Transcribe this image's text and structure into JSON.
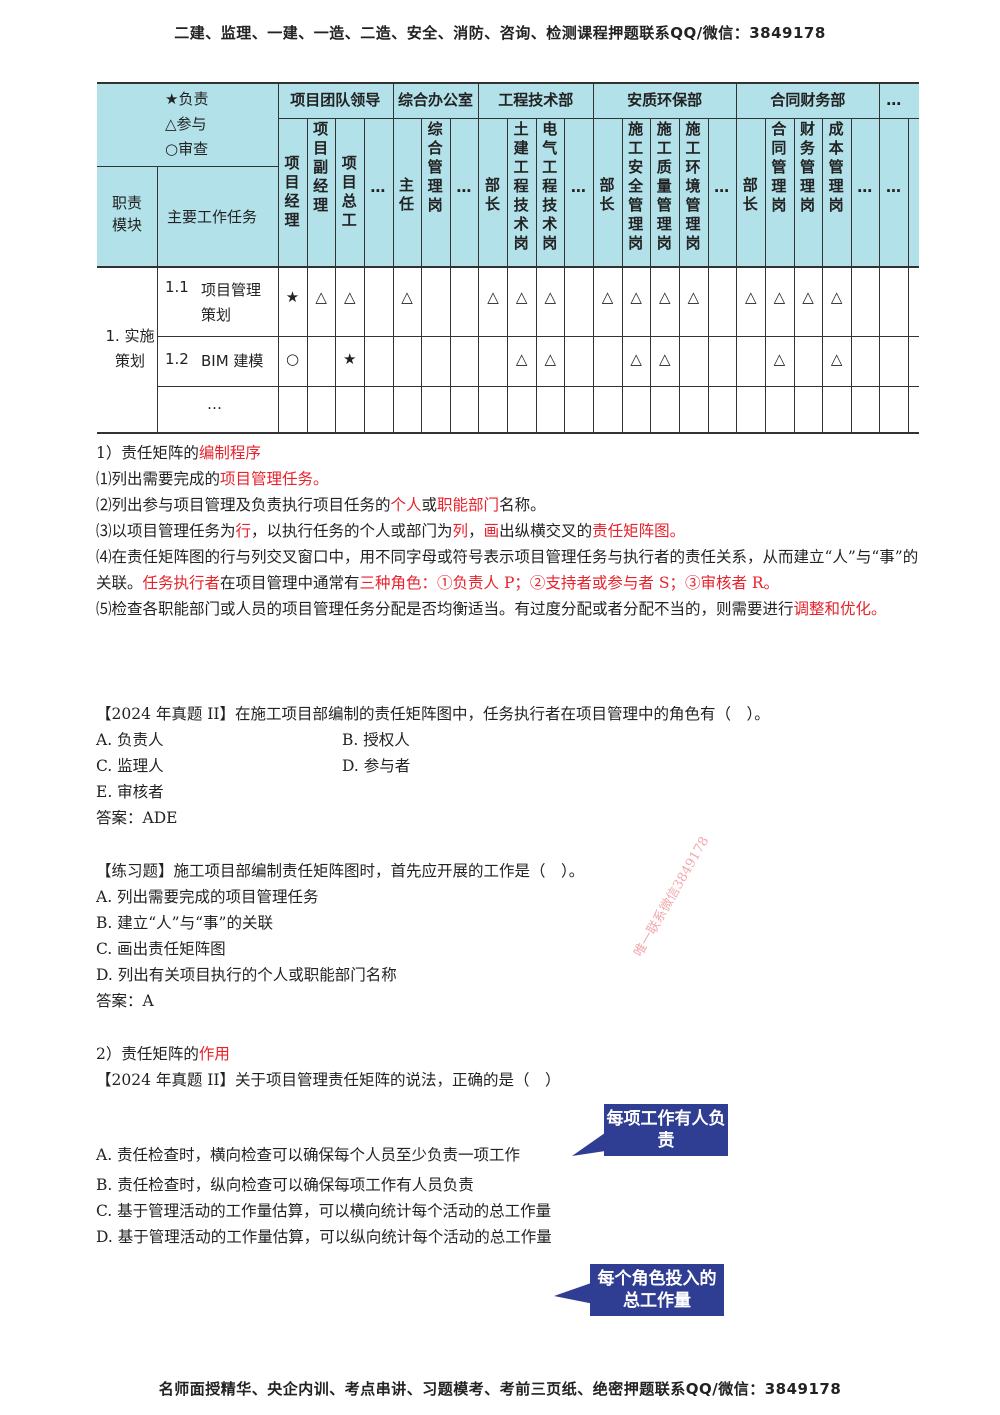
{
  "header": "二建、监理、一建、一造、二造、安全、消防、咨询、检测课程押题联系QQ/微信：3849178",
  "footer": "名师面授精华、央企内训、考点串讲、习题模考、考前三页纸、绝密押题联系QQ/微信：3849178",
  "matrix": {
    "legend": [
      "★负责",
      "△参与",
      "○审查"
    ],
    "col_module": "职责模块",
    "col_task": "主要工作任务",
    "groups": [
      "项目团队领导",
      "综合办公室",
      "工程技术部",
      "安质环保部",
      "合同财务部",
      "…"
    ],
    "roles": [
      "项目经理",
      "项目副经理",
      "项目总工",
      "…",
      "主任",
      "综合管理岗",
      "…",
      "部长",
      "土建工程技术岗",
      "电气工程技术岗",
      "…",
      "部长",
      "施工安全管理岗",
      "施工质量管理岗",
      "施工环境管理岗",
      "…",
      "部长",
      "合同管理岗",
      "财务管理岗",
      "成本管理岗",
      "…",
      "…"
    ],
    "module_label": "1. 实施策划",
    "rows": [
      {
        "task_no": "1.1",
        "task": "项目管理策划",
        "marks": [
          "★",
          "△",
          "△",
          "",
          "△",
          "",
          "",
          "△",
          "△",
          "△",
          "",
          "△",
          "△",
          "△",
          "△",
          "",
          "△",
          "△",
          "△",
          "△",
          "",
          ""
        ]
      },
      {
        "task_no": "1.2",
        "task": "BIM 建模",
        "marks": [
          "○",
          "",
          "★",
          "",
          "",
          "",
          "",
          "",
          "△",
          "△",
          "",
          "",
          "△",
          "△",
          "",
          "",
          "",
          "△",
          "",
          "△",
          "",
          ""
        ]
      },
      {
        "task_no": "",
        "task": "…",
        "marks": [
          "",
          "",
          "",
          "",
          "",
          "",
          "",
          "",
          "",
          "",
          "",
          "",
          "",
          "",
          "",
          "",
          "",
          "",
          "",
          "",
          "",
          ""
        ]
      }
    ]
  },
  "section1": {
    "title_plain": "1）责任矩阵的",
    "title_red": "编制程序",
    "s1_a": "⑴列出需要完成的",
    "s1_b": "项目管理任务。",
    "s2_a": "⑵列出参与项目管理及负责执行项目任务的",
    "s2_b": "个人",
    "s2_c": "或",
    "s2_d": "职能部门",
    "s2_e": "名称。",
    "s3_a": "⑶以项目管理任务为",
    "s3_b": "行",
    "s3_c": "，以执行任务的个人或部门为",
    "s3_d": "列",
    "s3_e": "，",
    "s3_f": "画",
    "s3_g": "出纵横交叉的",
    "s3_h": "责任矩阵图。",
    "s4_a": "⑷在责任矩阵图的行与列交叉窗口中，用不同字母或符号表示项目管理任务与执行者的责任关系，从而建立“人”与“事”的关联。",
    "s4_b": "任务执行者",
    "s4_c": "在项目管理中通常有",
    "s4_d": "三种角色：①负责人 P；②支持者或参与者 S；③审核者 R。",
    "s5_a": "⑸检查各职能部门或人员的项目管理任务分配是否均衡适当。有过度分配或者分配不当的，则需要进行",
    "s5_b": "调整和优化。"
  },
  "q1": {
    "stem": "【2024 年真题 II】在施工项目部编制的责任矩阵图中，任务执行者在项目管理中的角色有（　）。",
    "a": "A. 负责人",
    "b": "B. 授权人",
    "c": "C. 监理人",
    "d": "D. 参与者",
    "e": "E. 审核者",
    "answer": "答案：ADE"
  },
  "q2": {
    "stem": "【练习题】施工项目部编制责任矩阵图时，首先应开展的工作是（　）。",
    "a": "A. 列出需要完成的项目管理任务",
    "b": "B. 建立“人”与“事”的关联",
    "c": "C. 画出责任矩阵图",
    "d": "D. 列出有关项目执行的个人或职能部门名称",
    "answer": "答案：A"
  },
  "section2": {
    "title_plain": "2）责任矩阵的",
    "title_red": "作用"
  },
  "q3": {
    "stem": "【2024 年真题 II】关于项目管理责任矩阵的说法，正确的是（　）",
    "a": "A. 责任检查时，横向检查可以确保每个人员至少负责一项工作",
    "b": "B. 责任检查时，纵向检查可以确保每项工作有人员负责",
    "c": "C. 基于管理活动的工作量估算，可以横向统计每个活动的总工作量",
    "d": "D. 基于管理活动的工作量估算，可以纵向统计每个活动的总工作量"
  },
  "callouts": {
    "c1": "每项工作有人负责",
    "c2": "每个角色投入的总工作量"
  },
  "watermarks": {
    "w1": "唯一联系微信3849178"
  },
  "colors": {
    "header_bg": "#b2e1ea",
    "accent_red": "#e8212b",
    "callout_bg": "#2f3d92"
  }
}
